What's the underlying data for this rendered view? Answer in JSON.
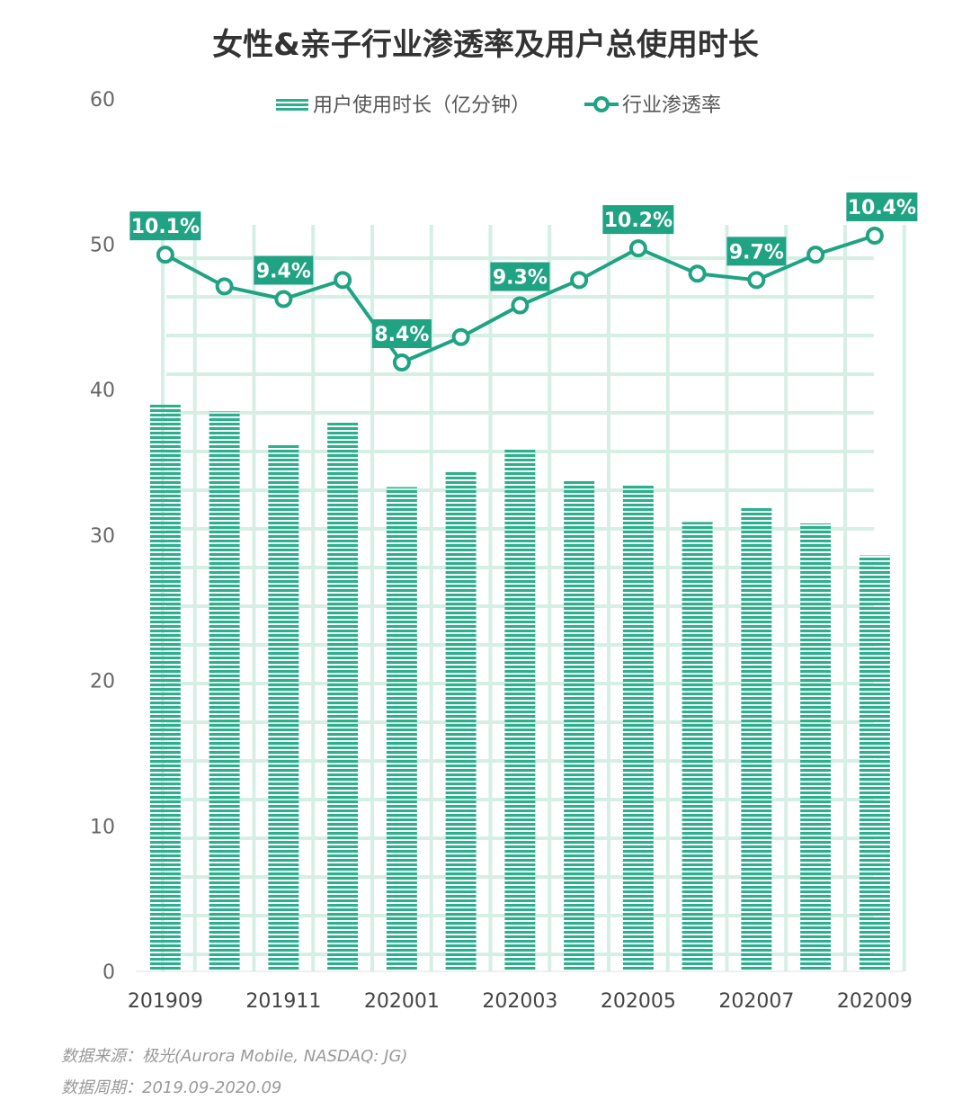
{
  "title": "女性&亲子行业渗透率及用户总使用时长",
  "chart_data": {
    "type": "bar",
    "categories": [
      "201909",
      "201910",
      "201911",
      "201912",
      "202001",
      "202002",
      "202003",
      "202004",
      "202005",
      "202006",
      "202007",
      "202008",
      "202009"
    ],
    "x_tick_labels": [
      "201909",
      "201911",
      "202001",
      "202003",
      "202005",
      "202007",
      "202009"
    ],
    "series": [
      {
        "name": "用户使用时长（亿分钟）",
        "type": "bar",
        "values": [
          39.0,
          38.5,
          36.2,
          37.8,
          33.3,
          34.4,
          35.9,
          33.8,
          33.4,
          30.9,
          31.9,
          30.8,
          28.6
        ]
      },
      {
        "name": "行业渗透率",
        "type": "line",
        "values": [
          10.1,
          9.6,
          9.4,
          9.7,
          8.4,
          8.8,
          9.3,
          9.7,
          10.2,
          9.8,
          9.7,
          10.1,
          10.4
        ],
        "data_labels": [
          "10.1%",
          "",
          "9.4%",
          "",
          "8.4%",
          "",
          "9.3%",
          "",
          "10.2%",
          "",
          "9.7%",
          "",
          "10.4%"
        ]
      }
    ],
    "y_ticks": [
      "0",
      "10",
      "20",
      "30",
      "40",
      "50",
      "60"
    ],
    "ylim": [
      0,
      60
    ],
    "legend_position": "top-center",
    "colors": {
      "bar": "#2ab08c",
      "line": "#1fa383",
      "grid": "#d6efe5",
      "label_bg": "#1fa383"
    }
  },
  "source": {
    "line1": "数据来源：极光(Aurora Mobile, NASDAQ: JG)",
    "line2": "数据周期：2019.09-2020.09"
  }
}
